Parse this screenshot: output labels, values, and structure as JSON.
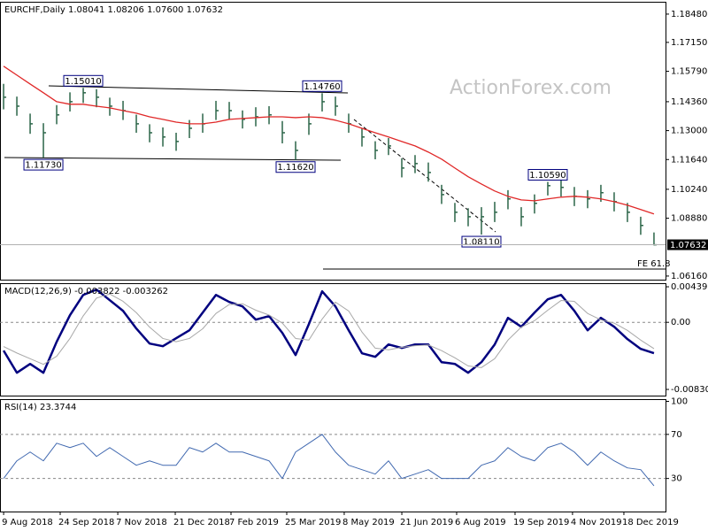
{
  "chart_data": [
    {
      "type": "ohlc",
      "title": "EURCHF,Daily  1.08041 1.08206 1.07600 1.07632",
      "watermark": "ActionForex.com",
      "x": [
        0,
        1,
        2,
        3,
        4,
        5,
        6,
        7,
        8,
        9,
        10,
        11,
        12,
        13,
        14,
        15,
        16,
        17,
        18,
        19,
        20,
        21,
        22,
        23,
        24,
        25,
        26,
        27,
        28,
        29,
        30,
        31,
        32,
        33,
        34,
        35,
        36,
        37,
        38,
        39,
        40,
        41,
        42,
        43,
        44,
        45,
        46,
        47,
        48,
        49
      ],
      "xlim": [
        -0.27,
        49.87
      ],
      "ylim": [
        1.0599,
        1.1906
      ],
      "yticks": [
        {
          "value": 1.1848,
          "label": "1.18480"
        },
        {
          "value": 1.1715,
          "label": "1.17150"
        },
        {
          "value": 1.1579,
          "label": "1.15790"
        },
        {
          "value": 1.1436,
          "label": "1.14360"
        },
        {
          "value": 1.13,
          "label": "1.13000"
        },
        {
          "value": 1.1164,
          "label": "1.11640"
        },
        {
          "value": 1.1024,
          "label": "1.10240"
        },
        {
          "value": 1.0888,
          "label": "1.08880"
        },
        {
          "value": 1.0616,
          "label": "1.06160"
        }
      ],
      "color": "#2b6548",
      "high": [
        1.152,
        1.146,
        1.138,
        1.1335,
        1.142,
        1.148,
        1.1501,
        1.1495,
        1.1455,
        1.144,
        1.1375,
        1.133,
        1.1315,
        1.129,
        1.135,
        1.138,
        1.144,
        1.1435,
        1.1395,
        1.141,
        1.1415,
        1.1345,
        1.125,
        1.138,
        1.1476,
        1.146,
        1.138,
        1.131,
        1.125,
        1.1265,
        1.117,
        1.1185,
        1.115,
        1.1045,
        1.096,
        1.0935,
        1.094,
        1.0965,
        1.102,
        1.094,
        1.1,
        1.1059,
        1.107,
        1.1035,
        1.102,
        1.1045,
        1.101,
        1.096,
        1.0895,
        1.0821
      ],
      "low": [
        1.14,
        1.137,
        1.1285,
        1.1173,
        1.133,
        1.139,
        1.143,
        1.141,
        1.137,
        1.135,
        1.129,
        1.1245,
        1.1225,
        1.1205,
        1.1265,
        1.129,
        1.135,
        1.135,
        1.131,
        1.132,
        1.133,
        1.124,
        1.1162,
        1.128,
        1.139,
        1.137,
        1.129,
        1.1225,
        1.1165,
        1.1185,
        1.108,
        1.11,
        1.106,
        1.0955,
        1.087,
        1.085,
        1.0811,
        1.087,
        1.093,
        1.085,
        1.091,
        1.0995,
        1.099,
        1.0945,
        1.0935,
        1.0965,
        1.092,
        1.087,
        1.081,
        1.076
      ],
      "close": [
        1.1457,
        1.1415,
        1.1332,
        1.129,
        1.1374,
        1.1436,
        1.1478,
        1.1457,
        1.1415,
        1.1394,
        1.1332,
        1.129,
        1.127,
        1.1249,
        1.1311,
        1.1332,
        1.1394,
        1.1394,
        1.1353,
        1.1365,
        1.1374,
        1.129,
        1.1207,
        1.1332,
        1.1436,
        1.1415,
        1.1332,
        1.127,
        1.1207,
        1.1228,
        1.1124,
        1.1145,
        1.1103,
        1.0999,
        1.0916,
        1.0895,
        1.0895,
        1.0916,
        1.0979,
        1.0895,
        1.0958,
        1.1041,
        1.1033,
        1.0991,
        1.0979,
        1.1008,
        1.0966,
        1.0916,
        1.0854,
        1.0763
      ],
      "ma": {
        "color": "#e02828",
        "values": [
          1.1603,
          1.1561,
          1.1519,
          1.1478,
          1.1436,
          1.1424,
          1.1424,
          1.1415,
          1.1407,
          1.1394,
          1.1382,
          1.1365,
          1.1353,
          1.134,
          1.1332,
          1.1332,
          1.134,
          1.1353,
          1.1357,
          1.1361,
          1.1365,
          1.1365,
          1.1361,
          1.1365,
          1.1361,
          1.1349,
          1.1332,
          1.1311,
          1.129,
          1.127,
          1.1249,
          1.1228,
          1.1199,
          1.1166,
          1.1124,
          1.1083,
          1.1049,
          1.1016,
          1.0991,
          1.0974,
          1.097,
          1.0979,
          1.0987,
          1.0991,
          1.0987,
          1.0979,
          1.0966,
          1.0949,
          1.0929,
          1.0908
        ]
      },
      "annotations": [
        {
          "x": 6,
          "value": 1.1501,
          "label": "1.15010"
        },
        {
          "x": 24,
          "value": 1.1476,
          "label": "1.14760"
        },
        {
          "x": 3,
          "value": 1.1173,
          "label": "1.11730"
        },
        {
          "x": 22,
          "value": 1.1162,
          "label": "1.11620"
        },
        {
          "x": 36,
          "value": 1.0811,
          "label": "1.08110"
        },
        {
          "x": 41,
          "value": 1.1059,
          "label": "1.10590"
        }
      ],
      "last_price": 1.07632,
      "fe_label": "FE 61.8"
    },
    {
      "type": "line",
      "title": "MACD(12,26,9) -0.003822 -0.003262",
      "x": [
        0,
        1,
        2,
        3,
        4,
        5,
        6,
        7,
        8,
        9,
        10,
        11,
        12,
        13,
        14,
        15,
        16,
        17,
        18,
        19,
        20,
        21,
        22,
        23,
        24,
        25,
        26,
        27,
        28,
        29,
        30,
        31,
        32,
        33,
        34,
        35,
        36,
        37,
        38,
        39,
        40,
        41,
        42,
        43,
        44,
        45,
        46,
        47,
        48,
        49
      ],
      "xlim": [
        -0.27,
        49.87
      ],
      "ylim": [
        -0.00907,
        0.00484
      ],
      "yticks": [
        0.004398,
        {
          "value": 0,
          "label": "0.00"
        },
        -0.008306
      ],
      "grid": [
        false,
        true,
        false
      ],
      "lines": [
        {
          "color": "#00007f",
          "values": [
            -0.0035,
            -0.00624,
            -0.00515,
            -0.00624,
            -0.00241,
            0.00088,
            0.00339,
            0.00405,
            0.00274,
            0.00142,
            -0.00077,
            -0.00263,
            -0.00296,
            -0.00197,
            -0.00099,
            0.0012,
            0.00339,
            0.00252,
            0.00197,
            0.00033,
            0.00077,
            -0.00131,
            -0.00405,
            -0.00022,
            0.00383,
            0.00197,
            -0.00099,
            -0.00383,
            -0.00427,
            -0.00274,
            -0.00318,
            -0.00274,
            -0.00274,
            -0.00493,
            -0.00515,
            -0.00624,
            -0.00493,
            -0.00274,
            0.00055,
            -0.00055,
            0.0012,
            0.00285,
            0.00339,
            0.00142,
            -0.00099,
            0.00055,
            -0.00055,
            -0.00208,
            -0.00329,
            -0.00382
          ]
        },
        {
          "color": "#a8a8a8",
          "values": [
            -0.003,
            -0.0038,
            -0.0045,
            -0.0052,
            -0.0042,
            -0.002,
            0.0008,
            0.003,
            0.0035,
            0.0026,
            0.0012,
            -0.0006,
            -0.002,
            -0.0024,
            -0.002,
            -0.0008,
            0.0011,
            0.0022,
            0.0023,
            0.0015,
            0.0009,
            -0.0001,
            -0.002,
            -0.0022,
            0.0004,
            0.0025,
            0.0014,
            -0.0012,
            -0.0032,
            -0.0034,
            -0.0031,
            -0.0029,
            -0.0028,
            -0.0035,
            -0.0044,
            -0.0054,
            -0.0056,
            -0.0045,
            -0.0022,
            -0.0006,
            0.0002,
            0.0015,
            0.0027,
            0.0026,
            0.0011,
            0.0003,
            -0.0001,
            -0.001,
            -0.0022,
            -0.00326
          ]
        }
      ]
    },
    {
      "type": "line",
      "title": "RSI(14) 23.3744",
      "x": [
        0,
        1,
        2,
        3,
        4,
        5,
        6,
        7,
        8,
        9,
        10,
        11,
        12,
        13,
        14,
        15,
        16,
        17,
        18,
        19,
        20,
        21,
        22,
        23,
        24,
        25,
        26,
        27,
        28,
        29,
        30,
        31,
        32,
        33,
        34,
        35,
        36,
        37,
        38,
        39,
        40,
        41,
        42,
        43,
        44,
        45,
        46,
        47,
        48,
        49
      ],
      "xlim": [
        -0.27,
        49.87
      ],
      "ylim": [
        0,
        102
      ],
      "yticks": [
        100,
        70,
        30
      ],
      "grid": [
        false,
        true,
        true
      ],
      "lines": [
        {
          "color": "#4169b0",
          "values": [
            30,
            46,
            54,
            46,
            62,
            58,
            62,
            50,
            58,
            50,
            42,
            46,
            42,
            42,
            58,
            54,
            62,
            54,
            54,
            50,
            46,
            30,
            54,
            62,
            70,
            54,
            42,
            38,
            34,
            46,
            30,
            34,
            38,
            30,
            30,
            30,
            42,
            46,
            58,
            50,
            46,
            58,
            62,
            54,
            42,
            54,
            46,
            39.6,
            38,
            23.37
          ]
        }
      ],
      "xticks": [
        {
          "value": -0.13,
          "label": "9 Aug 2018"
        },
        {
          "value": 4.13,
          "label": "24 Sep 2018"
        },
        {
          "value": 8.47,
          "label": "7 Nov 2018"
        },
        {
          "value": 12.8,
          "label": "21 Dec 2018"
        },
        {
          "value": 17.0,
          "label": "7 Feb 2019"
        },
        {
          "value": 21.2,
          "label": "25 Mar 2019"
        },
        {
          "value": 25.53,
          "label": "8 May 2019"
        },
        {
          "value": 29.87,
          "label": "21 Jun 2019"
        },
        {
          "value": 34.0,
          "label": "6 Aug 2019"
        },
        {
          "value": 38.4,
          "label": "19 Sep 2019"
        },
        {
          "value": 42.73,
          "label": "4 Nov 2019"
        },
        {
          "value": 46.6,
          "label": "18 Dec 2019"
        }
      ]
    }
  ]
}
